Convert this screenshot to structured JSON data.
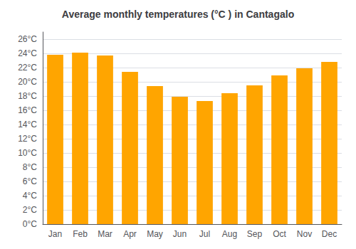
{
  "chart_data": {
    "type": "bar",
    "title": "Average monthly temperatures (°C ) in Cantagalo",
    "categories": [
      "Jan",
      "Feb",
      "Mar",
      "Apr",
      "May",
      "Jun",
      "Jul",
      "Aug",
      "Sep",
      "Oct",
      "Nov",
      "Dec"
    ],
    "values": [
      23.8,
      24.1,
      23.7,
      21.4,
      19.4,
      17.9,
      17.3,
      18.4,
      19.5,
      20.9,
      21.9,
      22.8
    ],
    "color": "#FFA500",
    "ylim": [
      0,
      27
    ],
    "yticks": [
      {
        "value": 0,
        "label": "0°C"
      },
      {
        "value": 2,
        "label": "2°C"
      },
      {
        "value": 4,
        "label": "4°C"
      },
      {
        "value": 6,
        "label": "6°C"
      },
      {
        "value": 8,
        "label": "8°C"
      },
      {
        "value": 10,
        "label": "10°C"
      },
      {
        "value": 12,
        "label": "12°C"
      },
      {
        "value": 14,
        "label": "14°C"
      },
      {
        "value": 16,
        "label": "16°C"
      },
      {
        "value": 18,
        "label": "18°C"
      },
      {
        "value": 20,
        "label": "20°C"
      },
      {
        "value": 22,
        "label": "22°C"
      },
      {
        "value": 24,
        "label": "24°C"
      },
      {
        "value": 26,
        "label": "26°C"
      }
    ],
    "grid": true
  }
}
